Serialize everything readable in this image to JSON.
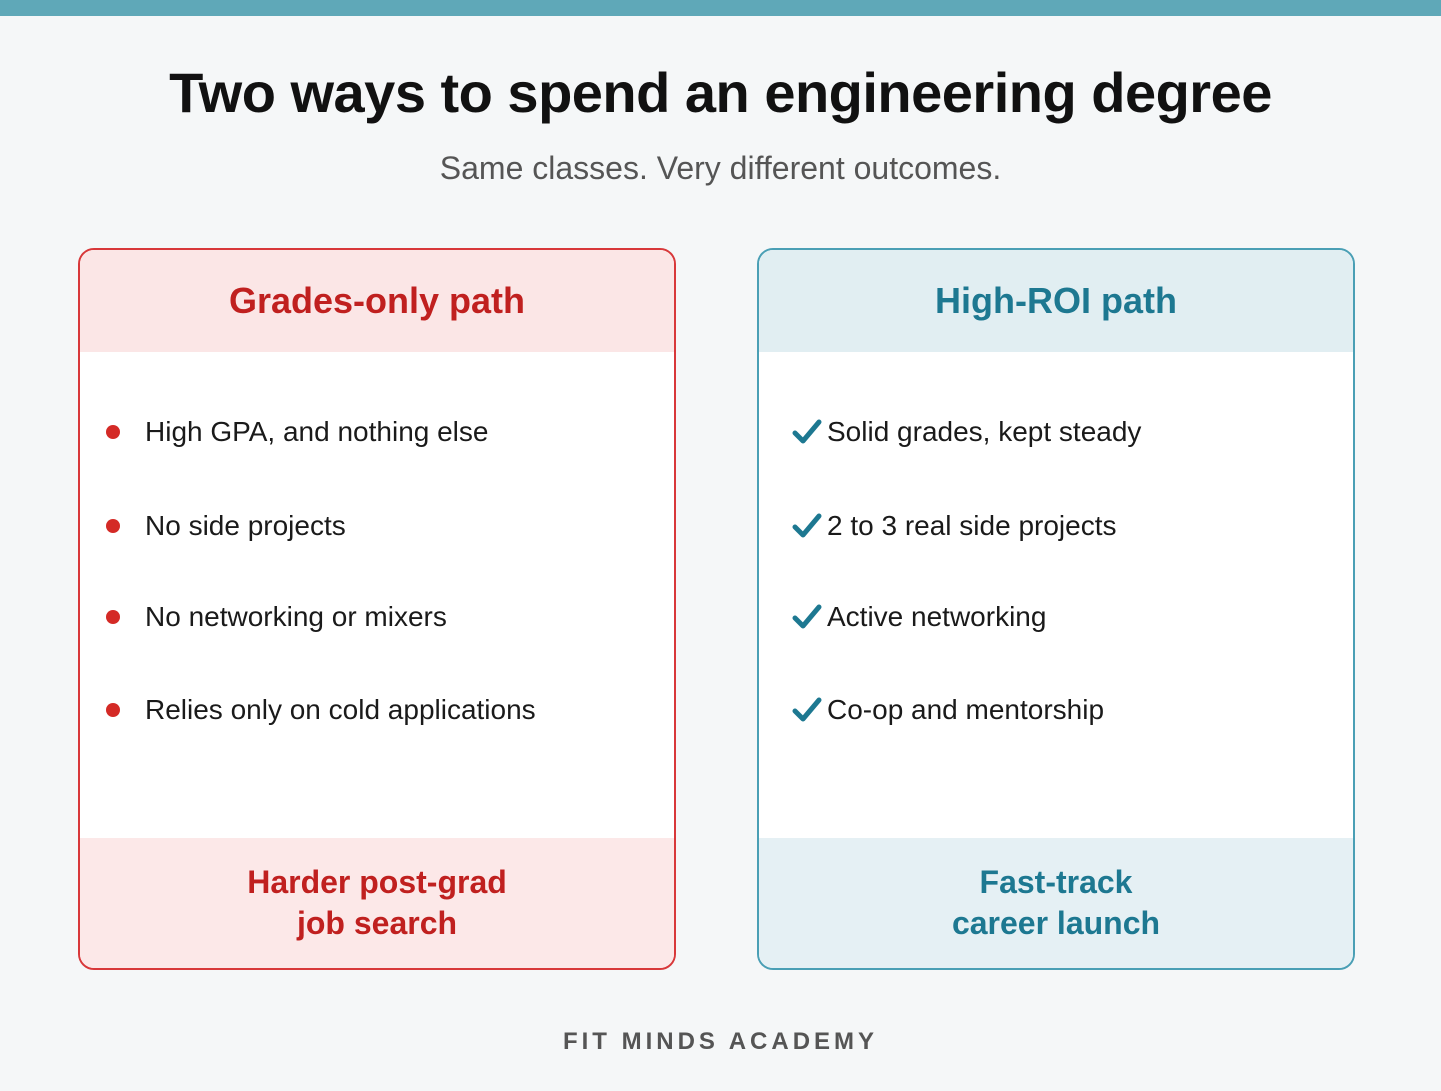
{
  "colors": {
    "top_bar": "#5fa8b8",
    "left_accent": "#c0201f",
    "right_accent": "#1d7891"
  },
  "title": "Two ways to spend an engineering degree",
  "subtitle": "Same classes. Very different outcomes.",
  "left_card": {
    "header": "Grades-only path",
    "marker_icon": "bullet-dot-icon",
    "items": [
      "High GPA, and nothing else",
      "No side projects",
      "No networking or mixers",
      "Relies only on cold applications"
    ],
    "footer_line1": "Harder post-grad",
    "footer_line2": "job search"
  },
  "right_card": {
    "header": "High-ROI path",
    "marker_icon": "checkmark-icon",
    "items": [
      "Solid grades, kept steady",
      "2 to 3 real side projects",
      "Active networking",
      "Co-op and mentorship"
    ],
    "footer_line1": "Fast-track",
    "footer_line2": "career launch"
  },
  "brand": "FIT MINDS ACADEMY"
}
